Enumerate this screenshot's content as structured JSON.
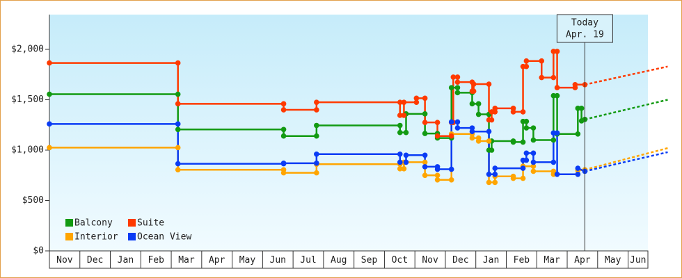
{
  "chart_data": {
    "type": "line",
    "today": {
      "x": 17.58,
      "label": [
        "Today",
        "Apr. 19"
      ]
    },
    "xlim": [
      0,
      19.65
    ],
    "xticks": [
      {
        "value": 0,
        "label": "Nov"
      },
      {
        "value": 1,
        "label": "Dec"
      },
      {
        "value": 2,
        "label": "Jan"
      },
      {
        "value": 3,
        "label": "Feb"
      },
      {
        "value": 4,
        "label": "Mar"
      },
      {
        "value": 5,
        "label": "Apr"
      },
      {
        "value": 6,
        "label": "May"
      },
      {
        "value": 7,
        "label": "Jun"
      },
      {
        "value": 8,
        "label": "Jul"
      },
      {
        "value": 9,
        "label": "Aug"
      },
      {
        "value": 10,
        "label": "Sep"
      },
      {
        "value": 11,
        "label": "Oct"
      },
      {
        "value": 12,
        "label": "Nov"
      },
      {
        "value": 13,
        "label": "Dec"
      },
      {
        "value": 14,
        "label": "Jan"
      },
      {
        "value": 15,
        "label": "Feb"
      },
      {
        "value": 16,
        "label": "Mar"
      },
      {
        "value": 17,
        "label": "Apr"
      },
      {
        "value": 18,
        "label": "May"
      },
      {
        "value": 19,
        "label": "Jun"
      }
    ],
    "ylim": [
      0,
      2345
    ],
    "yticks": [
      {
        "value": 0,
        "label": "$0"
      },
      {
        "value": 500,
        "label": "$500"
      },
      {
        "value": 1000,
        "label": "$1,000"
      },
      {
        "value": 1500,
        "label": "$1,500"
      },
      {
        "value": 2000,
        "label": "$2,000"
      }
    ],
    "series": [
      {
        "name": "Balcony",
        "color": "#129a12",
        "x": [
          0,
          4.22,
          4.22,
          7.69,
          7.69,
          8.77,
          8.77,
          11.51,
          11.51,
          11.71,
          11.71,
          12.33,
          12.33,
          12.74,
          12.74,
          13.2,
          13.2,
          13.4,
          13.4,
          13.88,
          13.88,
          14.09,
          14.09,
          14.43,
          14.43,
          14.52,
          14.52,
          15.23,
          15.23,
          15.55,
          15.55,
          15.66,
          15.66,
          15.89,
          15.89,
          16.55,
          16.55,
          16.67,
          16.67,
          17.35,
          17.35,
          17.47,
          17.47,
          17.58
        ],
        "values": [
          1555,
          1555,
          1205,
          1205,
          1140,
          1140,
          1245,
          1245,
          1175,
          1175,
          1360,
          1360,
          1165,
          1165,
          1120,
          1120,
          1620,
          1620,
          1570,
          1570,
          1460,
          1460,
          1355,
          1355,
          1000,
          1000,
          1090,
          1090,
          1080,
          1080,
          1285,
          1285,
          1220,
          1220,
          1100,
          1100,
          1540,
          1540,
          1160,
          1160,
          1415,
          1415,
          1290,
          1305
        ],
        "forecast_x": [
          17.58,
          20.3
        ],
        "forecast_values": [
          1305,
          1500
        ]
      },
      {
        "name": "Interior",
        "color": "#ffa500",
        "x": [
          0,
          4.22,
          4.22,
          7.69,
          7.69,
          8.77,
          8.77,
          11.51,
          11.51,
          11.64,
          11.64,
          12.33,
          12.33,
          12.74,
          12.74,
          13.2,
          13.2,
          13.88,
          13.88,
          14.09,
          14.09,
          14.43,
          14.43,
          14.63,
          14.63,
          15.23,
          15.23,
          15.55,
          15.55,
          15.89,
          15.89,
          16.55,
          16.55,
          17.35,
          17.35,
          17.58
        ],
        "values": [
          1025,
          1025,
          805,
          805,
          775,
          775,
          860,
          860,
          815,
          815,
          880,
          880,
          750,
          750,
          705,
          705,
          1160,
          1160,
          1120,
          1120,
          1090,
          1090,
          680,
          680,
          740,
          740,
          720,
          720,
          840,
          840,
          790,
          790,
          760,
          760,
          800,
          805
        ],
        "forecast_x": [
          17.58,
          20.3
        ],
        "forecast_values": [
          805,
          1020
        ]
      },
      {
        "name": "Suite",
        "color": "#ff3a00",
        "x": [
          0,
          4.22,
          4.22,
          7.69,
          7.69,
          8.77,
          8.77,
          11.51,
          11.51,
          11.64,
          11.64,
          12.05,
          12.05,
          12.33,
          12.33,
          12.74,
          12.74,
          13.2,
          13.2,
          13.26,
          13.26,
          13.4,
          13.4,
          13.88,
          13.88,
          13.93,
          13.93,
          14.43,
          14.43,
          14.52,
          14.52,
          14.63,
          14.63,
          15.23,
          15.23,
          15.55,
          15.55,
          15.66,
          15.66,
          16.16,
          16.16,
          16.55,
          16.55,
          16.67,
          16.67,
          17.26,
          17.26,
          17.58
        ],
        "values": [
          1865,
          1865,
          1460,
          1460,
          1400,
          1400,
          1475,
          1475,
          1345,
          1345,
          1475,
          1475,
          1515,
          1515,
          1275,
          1275,
          1140,
          1140,
          1275,
          1275,
          1725,
          1725,
          1675,
          1675,
          1585,
          1585,
          1655,
          1655,
          1300,
          1300,
          1380,
          1380,
          1415,
          1415,
          1380,
          1380,
          1830,
          1830,
          1885,
          1885,
          1720,
          1720,
          1980,
          1980,
          1620,
          1620,
          1650,
          1650
        ],
        "forecast_x": [
          17.58,
          20.3
        ],
        "forecast_values": [
          1650,
          1830
        ]
      },
      {
        "name": "Ocean View",
        "color": "#0a3cf5",
        "x": [
          0,
          4.22,
          4.22,
          7.69,
          7.69,
          8.77,
          8.77,
          11.51,
          11.51,
          11.71,
          11.71,
          12.33,
          12.33,
          12.74,
          12.74,
          13.2,
          13.2,
          13.4,
          13.4,
          13.88,
          13.88,
          14.43,
          14.43,
          14.63,
          14.63,
          15.55,
          15.55,
          15.66,
          15.66,
          15.89,
          15.89,
          16.55,
          16.55,
          16.67,
          16.67,
          17.35,
          17.35,
          17.58
        ],
        "values": [
          1260,
          1260,
          865,
          865,
          870,
          870,
          960,
          960,
          880,
          880,
          950,
          950,
          835,
          835,
          810,
          810,
          1280,
          1280,
          1220,
          1220,
          1185,
          1185,
          760,
          760,
          820,
          820,
          900,
          900,
          970,
          970,
          880,
          880,
          1170,
          1170,
          760,
          760,
          820,
          790
        ],
        "forecast_x": [
          17.58,
          20.3
        ],
        "forecast_values": [
          790,
          980
        ]
      }
    ]
  }
}
